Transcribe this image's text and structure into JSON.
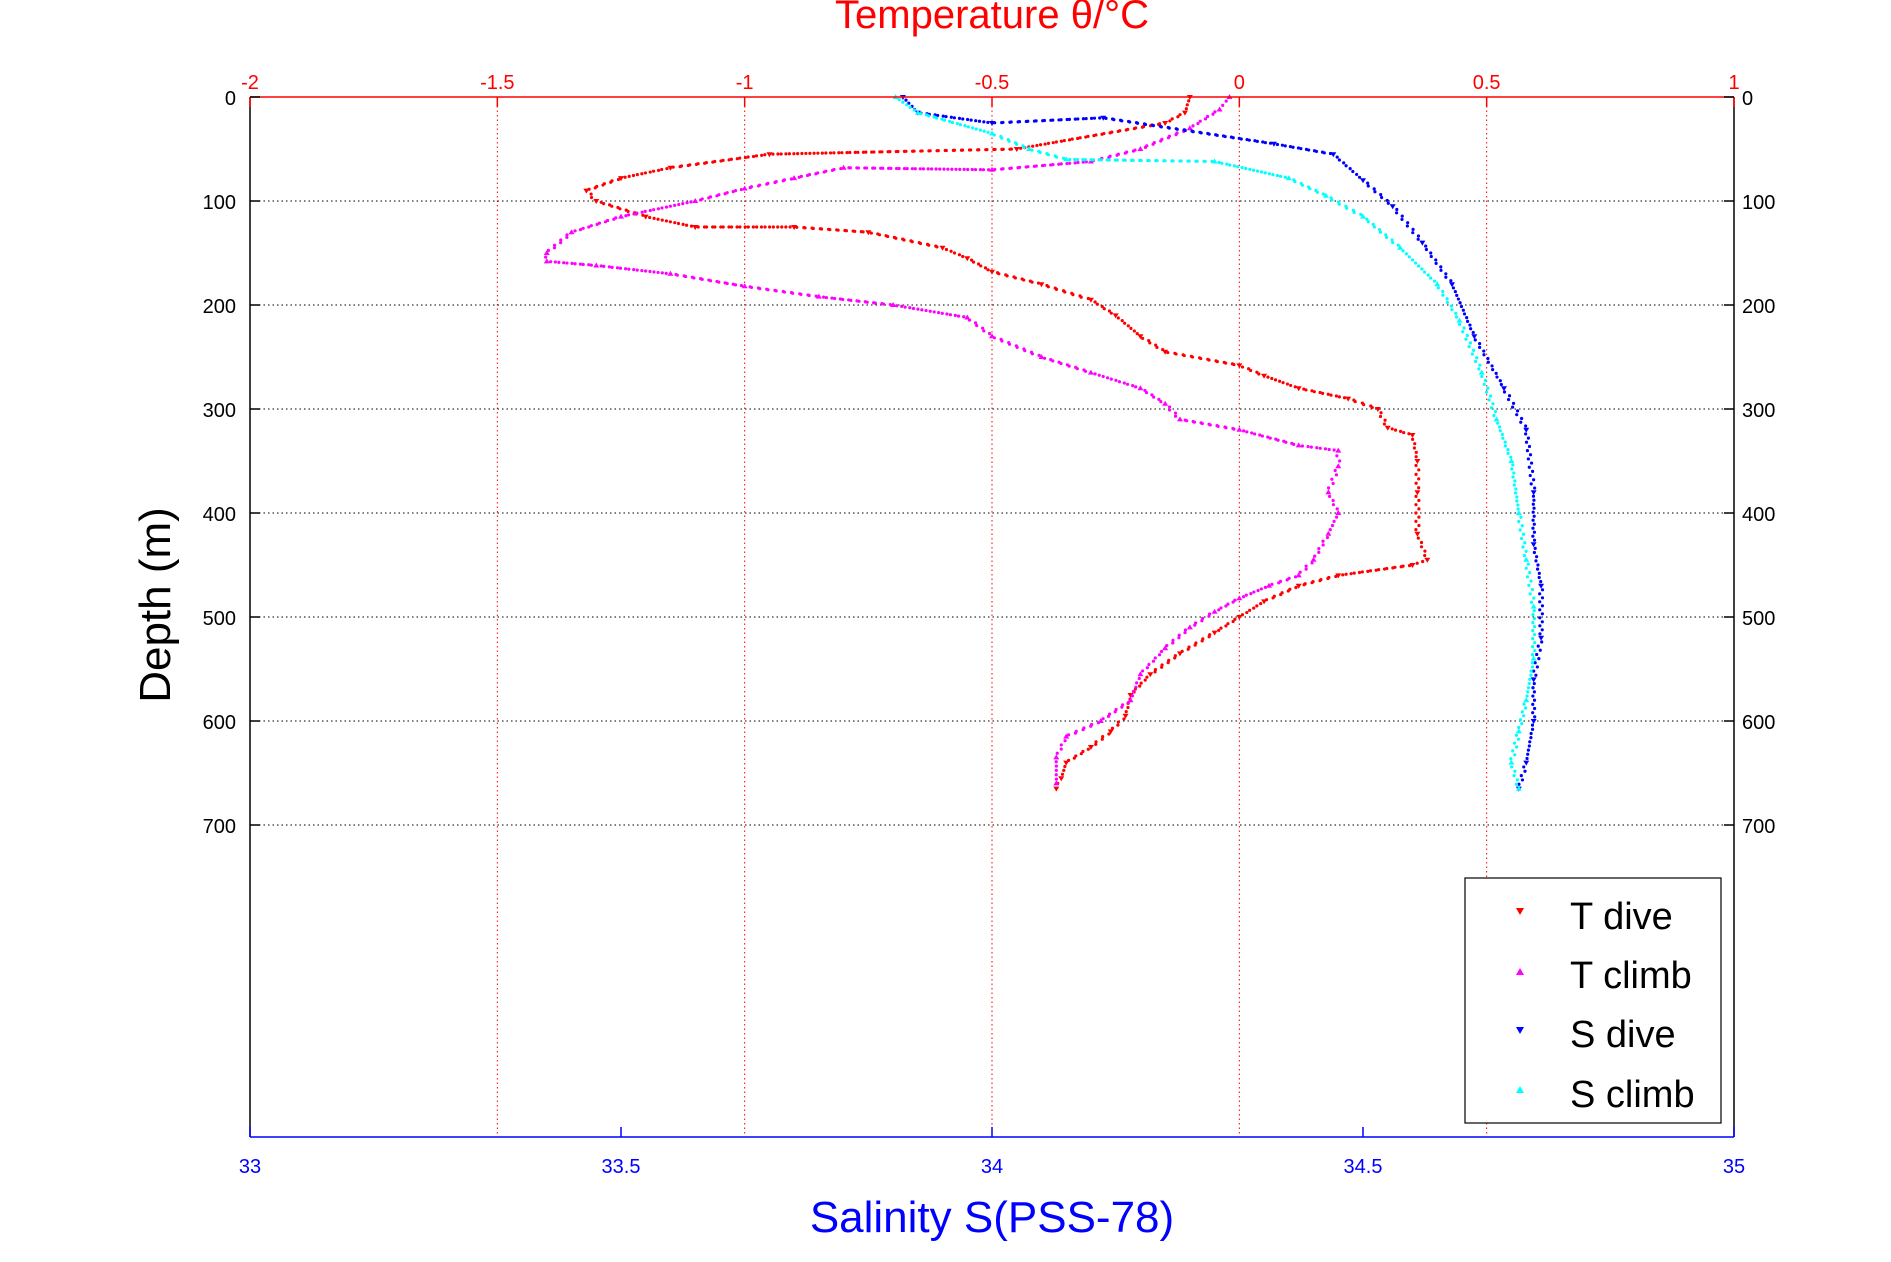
{
  "chart_data": {
    "type": "scatter",
    "top_axis": {
      "label": "Temperature θ/°C",
      "range": [
        -2,
        1
      ],
      "ticks": [
        "-2",
        "-1.5",
        "-1",
        "-0.5",
        "0",
        "0.5",
        "1"
      ],
      "tick_values": [
        -2,
        -1.5,
        -1,
        -0.5,
        0,
        0.5,
        1
      ],
      "color": "#ff0000"
    },
    "bottom_axis": {
      "label": "Salinity S(PSS-78)",
      "range": [
        33,
        35
      ],
      "ticks": [
        "33",
        "33.5",
        "34",
        "34.5",
        "35"
      ],
      "tick_values": [
        33,
        33.5,
        34,
        34.5,
        35
      ],
      "color": "#0000ff"
    },
    "y_axis": {
      "label": "Depth (m)",
      "range": [
        0,
        1000
      ],
      "reversed": true,
      "ticks": [
        "0",
        "100",
        "200",
        "300",
        "400",
        "500",
        "600",
        "700"
      ],
      "tick_values": [
        0,
        100,
        200,
        300,
        400,
        500,
        600,
        700
      ]
    },
    "grid": true,
    "legend_position": "bottom-right",
    "series": [
      {
        "name": "T dive",
        "axis": "temperature",
        "color": "#ff0000",
        "marker": "triangle-down",
        "points": [
          [
            -0.1,
            0
          ],
          [
            -0.11,
            15
          ],
          [
            -0.15,
            25
          ],
          [
            -0.45,
            50
          ],
          [
            -0.95,
            55
          ],
          [
            -1.15,
            68
          ],
          [
            -1.25,
            78
          ],
          [
            -1.32,
            90
          ],
          [
            -1.3,
            100
          ],
          [
            -1.2,
            115
          ],
          [
            -1.1,
            125
          ],
          [
            -0.9,
            125
          ],
          [
            -0.75,
            130
          ],
          [
            -0.6,
            145
          ],
          [
            -0.55,
            155
          ],
          [
            -0.5,
            168
          ],
          [
            -0.4,
            180
          ],
          [
            -0.3,
            195
          ],
          [
            -0.25,
            210
          ],
          [
            -0.2,
            230
          ],
          [
            -0.15,
            245
          ],
          [
            0.0,
            258
          ],
          [
            0.05,
            268
          ],
          [
            0.12,
            280
          ],
          [
            0.22,
            290
          ],
          [
            0.28,
            300
          ],
          [
            0.3,
            318
          ],
          [
            0.35,
            325
          ],
          [
            0.36,
            350
          ],
          [
            0.36,
            380
          ],
          [
            0.36,
            420
          ],
          [
            0.38,
            445
          ],
          [
            0.35,
            450
          ],
          [
            0.2,
            460
          ],
          [
            0.12,
            470
          ],
          [
            0.05,
            485
          ],
          [
            0.0,
            500
          ],
          [
            -0.05,
            515
          ],
          [
            -0.12,
            535
          ],
          [
            -0.18,
            555
          ],
          [
            -0.22,
            575
          ],
          [
            -0.23,
            595
          ],
          [
            -0.26,
            610
          ],
          [
            -0.3,
            625
          ],
          [
            -0.35,
            640
          ],
          [
            -0.36,
            655
          ],
          [
            -0.37,
            665
          ]
        ]
      },
      {
        "name": "T climb",
        "axis": "temperature",
        "color": "#ff00ff",
        "marker": "triangle-up",
        "points": [
          [
            -0.02,
            0
          ],
          [
            -0.04,
            12
          ],
          [
            -0.1,
            30
          ],
          [
            -0.2,
            50
          ],
          [
            -0.3,
            62
          ],
          [
            -0.5,
            70
          ],
          [
            -0.8,
            68
          ],
          [
            -0.9,
            78
          ],
          [
            -1.0,
            88
          ],
          [
            -1.1,
            100
          ],
          [
            -1.25,
            115
          ],
          [
            -1.35,
            130
          ],
          [
            -1.4,
            150
          ],
          [
            -1.4,
            158
          ],
          [
            -1.3,
            162
          ],
          [
            -1.15,
            170
          ],
          [
            -1.0,
            182
          ],
          [
            -0.85,
            192
          ],
          [
            -0.7,
            200
          ],
          [
            -0.55,
            212
          ],
          [
            -0.5,
            230
          ],
          [
            -0.4,
            250
          ],
          [
            -0.3,
            265
          ],
          [
            -0.2,
            280
          ],
          [
            -0.15,
            295
          ],
          [
            -0.12,
            310
          ],
          [
            0.0,
            320
          ],
          [
            0.12,
            335
          ],
          [
            0.2,
            340
          ],
          [
            0.2,
            355
          ],
          [
            0.18,
            380
          ],
          [
            0.2,
            400
          ],
          [
            0.18,
            420
          ],
          [
            0.15,
            445
          ],
          [
            0.12,
            460
          ],
          [
            0.06,
            470
          ],
          [
            0.0,
            482
          ],
          [
            -0.05,
            495
          ],
          [
            -0.1,
            510
          ],
          [
            -0.15,
            530
          ],
          [
            -0.2,
            555
          ],
          [
            -0.22,
            580
          ],
          [
            -0.28,
            600
          ],
          [
            -0.35,
            615
          ],
          [
            -0.37,
            635
          ],
          [
            -0.37,
            660
          ]
        ]
      },
      {
        "name": "S dive",
        "axis": "salinity",
        "color": "#0000ff",
        "marker": "triangle-down",
        "points": [
          [
            33.88,
            0
          ],
          [
            33.9,
            15
          ],
          [
            34.0,
            25
          ],
          [
            34.15,
            20
          ],
          [
            34.38,
            45
          ],
          [
            34.46,
            55
          ],
          [
            34.5,
            80
          ],
          [
            34.54,
            105
          ],
          [
            34.58,
            140
          ],
          [
            34.62,
            180
          ],
          [
            34.65,
            230
          ],
          [
            34.69,
            280
          ],
          [
            34.72,
            320
          ],
          [
            34.73,
            380
          ],
          [
            34.73,
            430
          ],
          [
            34.74,
            470
          ],
          [
            34.74,
            520
          ],
          [
            34.73,
            560
          ],
          [
            34.73,
            600
          ],
          [
            34.72,
            640
          ],
          [
            34.71,
            665
          ]
        ]
      },
      {
        "name": "S climb",
        "axis": "salinity",
        "color": "#00ffff",
        "marker": "triangle-up",
        "points": [
          [
            33.87,
            0
          ],
          [
            33.9,
            15
          ],
          [
            34.0,
            35
          ],
          [
            34.05,
            50
          ],
          [
            34.1,
            60
          ],
          [
            34.3,
            62
          ],
          [
            34.4,
            78
          ],
          [
            34.45,
            95
          ],
          [
            34.5,
            115
          ],
          [
            34.55,
            145
          ],
          [
            34.6,
            180
          ],
          [
            34.63,
            215
          ],
          [
            34.66,
            265
          ],
          [
            34.68,
            310
          ],
          [
            34.7,
            350
          ],
          [
            34.71,
            400
          ],
          [
            34.72,
            445
          ],
          [
            34.73,
            490
          ],
          [
            34.73,
            540
          ],
          [
            34.72,
            580
          ],
          [
            34.71,
            610
          ],
          [
            34.7,
            640
          ],
          [
            34.71,
            665
          ]
        ]
      }
    ]
  }
}
